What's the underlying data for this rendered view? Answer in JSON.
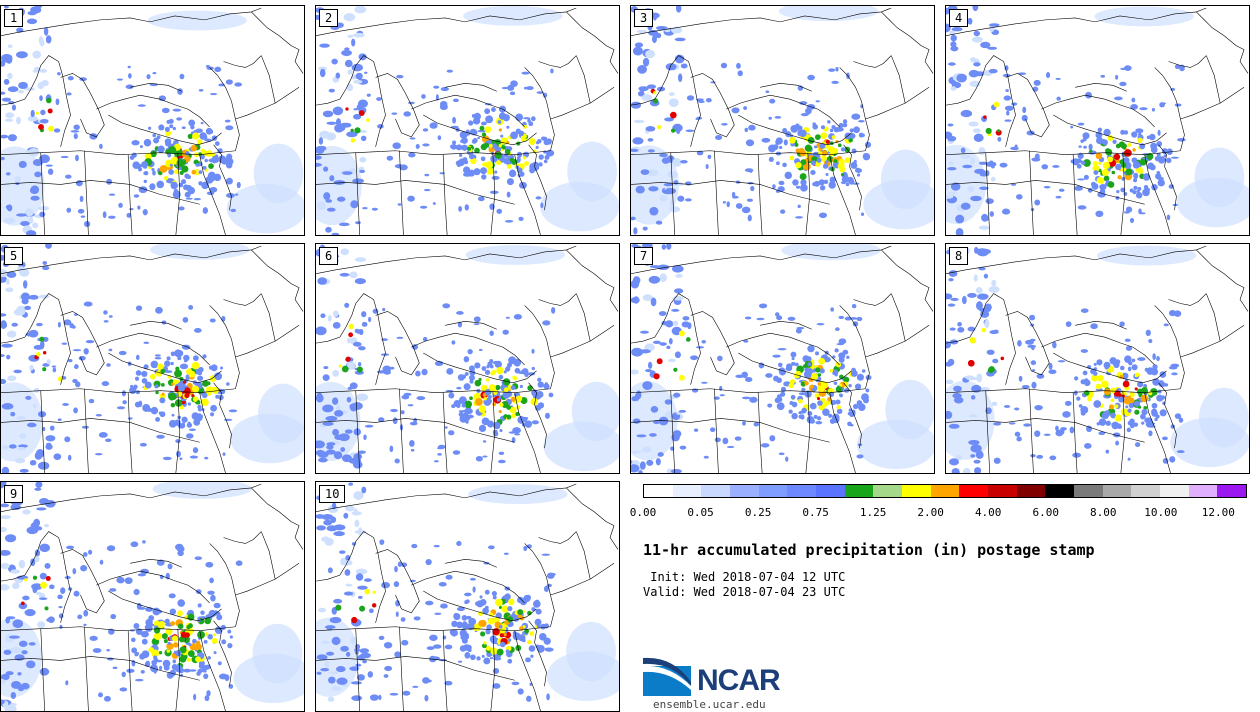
{
  "panels": [
    {
      "label": "1"
    },
    {
      "label": "2"
    },
    {
      "label": "3"
    },
    {
      "label": "4"
    },
    {
      "label": "5"
    },
    {
      "label": "6"
    },
    {
      "label": "7"
    },
    {
      "label": "8"
    },
    {
      "label": "9"
    },
    {
      "label": "10"
    }
  ],
  "colorbar": {
    "colors": [
      "#ffffff",
      "#e8f0ff",
      "#c8d8ff",
      "#9ab0ff",
      "#7f9cff",
      "#6e88ff",
      "#5b74ff",
      "#19a519",
      "#a6d88a",
      "#ffff00",
      "#ffa500",
      "#ff0000",
      "#c80000",
      "#800000",
      "#000000",
      "#7a7a7a",
      "#a8a8a8",
      "#d0d0d0",
      "#f0f0f0",
      "#e0b0ff",
      "#9b19f0"
    ],
    "tick_labels": [
      "0.00",
      "0.05",
      "0.25",
      "0.75",
      "1.25",
      "2.00",
      "4.00",
      "6.00",
      "8.00",
      "10.00",
      "12.00"
    ]
  },
  "title": "11-hr accumulated precipitation (in) postage stamp",
  "init": " Init: Wed 2018-07-04 12 UTC",
  "valid": "Valid: Wed 2018-07-04 23 UTC",
  "logo": {
    "text": "NCAR",
    "url": "ensemble.ucar.edu",
    "brand_color": "#1c3f7a",
    "accent_color": "#0a7cc8"
  },
  "map_colors": {
    "light_blue": "#cfe0ff",
    "blue": "#6d8cf5",
    "green": "#1aa51a",
    "yellow": "#ffff00",
    "orange": "#ffa500",
    "red": "#e00000",
    "dark_red": "#8b0000"
  }
}
